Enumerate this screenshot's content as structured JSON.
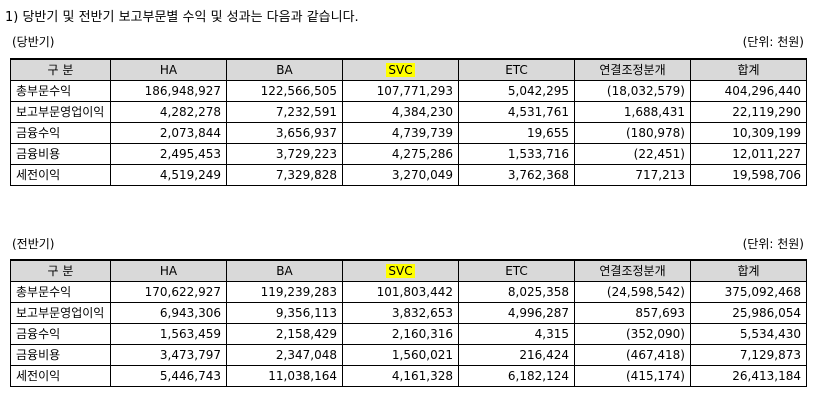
{
  "heading": "1) 당반기 및 전반기 보고부문별 수익 및 성과는 다음과 같습니다.",
  "header_labels": [
    "구   분",
    "HA",
    "BA",
    "SVC",
    "ETC",
    "연결조정분개",
    "합계"
  ],
  "highlight_color": "#ffff00",
  "header_bg": "#d9d9d9",
  "current": {
    "period_label": "(당반기)",
    "unit_label": "(단위: 천원)",
    "rows": [
      [
        "총부문수익",
        "186,948,927",
        "122,566,505",
        "107,771,293",
        "5,042,295",
        "(18,032,579)",
        "404,296,440"
      ],
      [
        "보고부문영업이익",
        "4,282,278",
        "7,232,591",
        "4,384,230",
        "4,531,761",
        "1,688,431",
        "22,119,290"
      ],
      [
        "금융수익",
        "2,073,844",
        "3,656,937",
        "4,739,739",
        "19,655",
        "(180,978)",
        "10,309,199"
      ],
      [
        "금융비용",
        "2,495,453",
        "3,729,223",
        "4,275,286",
        "1,533,716",
        "(22,451)",
        "12,011,227"
      ],
      [
        "세전이익",
        "4,519,249",
        "7,329,828",
        "3,270,049",
        "3,762,368",
        "717,213",
        "19,598,706"
      ]
    ]
  },
  "previous": {
    "period_label": "(전반기)",
    "unit_label": "(단위: 천원)",
    "rows": [
      [
        "총부문수익",
        "170,622,927",
        "119,239,283",
        "101,803,442",
        "8,025,358",
        "(24,598,542)",
        "375,092,468"
      ],
      [
        "보고부문영업이익",
        "6,943,306",
        "9,356,113",
        "3,832,653",
        "4,996,287",
        "857,693",
        "25,986,054"
      ],
      [
        "금융수익",
        "1,563,459",
        "2,158,429",
        "2,160,316",
        "4,315",
        "(352,090)",
        "5,534,430"
      ],
      [
        "금융비용",
        "3,473,797",
        "2,347,048",
        "1,560,021",
        "216,424",
        "(467,418)",
        "7,129,873"
      ],
      [
        "세전이익",
        "5,446,743",
        "11,038,164",
        "4,161,328",
        "6,182,124",
        "(415,174)",
        "26,413,184"
      ]
    ]
  }
}
